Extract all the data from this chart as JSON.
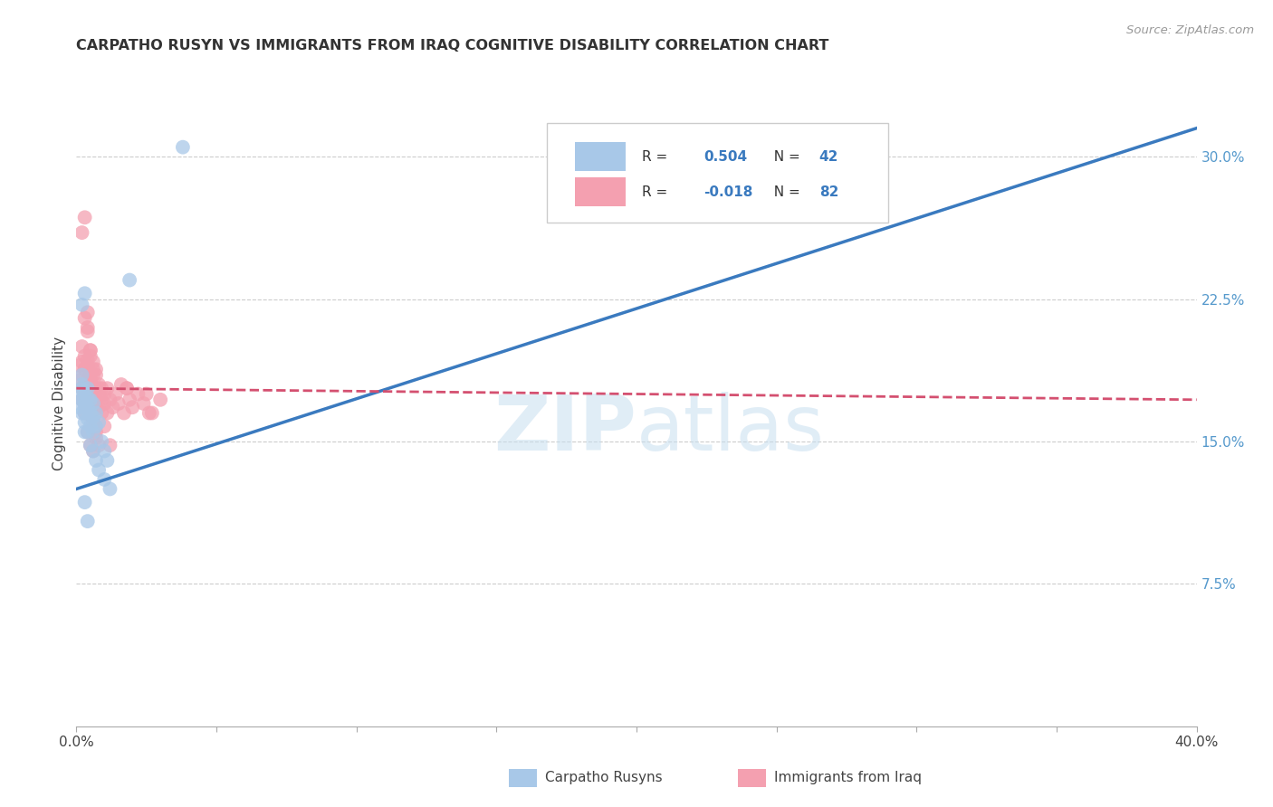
{
  "title": "CARPATHO RUSYN VS IMMIGRANTS FROM IRAQ COGNITIVE DISABILITY CORRELATION CHART",
  "source": "Source: ZipAtlas.com",
  "ylabel": "Cognitive Disability",
  "legend_label1": "Carpatho Rusyns",
  "legend_label2": "Immigrants from Iraq",
  "color_blue": "#a8c8e8",
  "color_pink": "#f4a0b0",
  "color_blue_line": "#3a7abf",
  "color_pink_line": "#d45070",
  "xlim": [
    0.0,
    0.4
  ],
  "ylim": [
    0.0,
    0.34
  ],
  "ylabel_right_ticks": [
    "7.5%",
    "15.0%",
    "22.5%",
    "30.0%"
  ],
  "ylabel_right_vals": [
    0.075,
    0.15,
    0.225,
    0.3
  ],
  "blue_line_x": [
    0.0,
    0.4
  ],
  "blue_line_y": [
    0.125,
    0.315
  ],
  "pink_line_x": [
    0.0,
    0.4
  ],
  "pink_line_y": [
    0.178,
    0.172
  ],
  "watermark_zip": "ZIP",
  "watermark_atlas": "atlas",
  "background_color": "#ffffff",
  "grid_color": "#cccccc",
  "blue_x": [
    0.001,
    0.001,
    0.002,
    0.002,
    0.002,
    0.002,
    0.002,
    0.003,
    0.003,
    0.003,
    0.003,
    0.003,
    0.003,
    0.004,
    0.004,
    0.004,
    0.004,
    0.004,
    0.005,
    0.005,
    0.005,
    0.005,
    0.006,
    0.006,
    0.006,
    0.006,
    0.007,
    0.007,
    0.007,
    0.008,
    0.008,
    0.009,
    0.01,
    0.01,
    0.011,
    0.012,
    0.002,
    0.003,
    0.003,
    0.004,
    0.038,
    0.019
  ],
  "blue_y": [
    0.175,
    0.168,
    0.172,
    0.178,
    0.165,
    0.18,
    0.185,
    0.17,
    0.175,
    0.168,
    0.16,
    0.155,
    0.165,
    0.173,
    0.168,
    0.162,
    0.178,
    0.155,
    0.172,
    0.165,
    0.158,
    0.148,
    0.17,
    0.163,
    0.155,
    0.145,
    0.165,
    0.158,
    0.14,
    0.16,
    0.135,
    0.15,
    0.145,
    0.13,
    0.14,
    0.125,
    0.222,
    0.228,
    0.118,
    0.108,
    0.305,
    0.235
  ],
  "pink_x": [
    0.001,
    0.001,
    0.002,
    0.002,
    0.002,
    0.002,
    0.003,
    0.003,
    0.003,
    0.003,
    0.003,
    0.004,
    0.004,
    0.004,
    0.004,
    0.004,
    0.005,
    0.005,
    0.005,
    0.005,
    0.006,
    0.006,
    0.006,
    0.006,
    0.007,
    0.007,
    0.007,
    0.007,
    0.008,
    0.008,
    0.008,
    0.009,
    0.009,
    0.009,
    0.01,
    0.01,
    0.011,
    0.011,
    0.012,
    0.013,
    0.014,
    0.015,
    0.016,
    0.017,
    0.018,
    0.019,
    0.02,
    0.022,
    0.024,
    0.026,
    0.002,
    0.003,
    0.004,
    0.005,
    0.003,
    0.004,
    0.005,
    0.006,
    0.007,
    0.008,
    0.003,
    0.004,
    0.005,
    0.006,
    0.002,
    0.004,
    0.005,
    0.003,
    0.006,
    0.004,
    0.005,
    0.006,
    0.007,
    0.008,
    0.01,
    0.012,
    0.03,
    0.027,
    0.006,
    0.007,
    0.025,
    0.018
  ],
  "pink_y": [
    0.182,
    0.19,
    0.178,
    0.185,
    0.192,
    0.172,
    0.18,
    0.175,
    0.188,
    0.17,
    0.165,
    0.182,
    0.175,
    0.168,
    0.178,
    0.19,
    0.175,
    0.182,
    0.17,
    0.165,
    0.178,
    0.185,
    0.17,
    0.162,
    0.178,
    0.172,
    0.168,
    0.185,
    0.175,
    0.168,
    0.18,
    0.172,
    0.178,
    0.165,
    0.175,
    0.17,
    0.165,
    0.178,
    0.172,
    0.168,
    0.175,
    0.17,
    0.18,
    0.165,
    0.178,
    0.172,
    0.168,
    0.175,
    0.17,
    0.165,
    0.2,
    0.195,
    0.21,
    0.198,
    0.188,
    0.193,
    0.185,
    0.192,
    0.188,
    0.178,
    0.215,
    0.208,
    0.198,
    0.188,
    0.26,
    0.218,
    0.195,
    0.268,
    0.16,
    0.155,
    0.148,
    0.145,
    0.152,
    0.148,
    0.158,
    0.148,
    0.172,
    0.165,
    0.178,
    0.155,
    0.175,
    0.178
  ]
}
